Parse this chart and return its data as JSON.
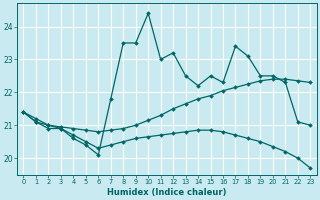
{
  "xlabel": "Humidex (Indice chaleur)",
  "bg_color": "#c8eaf0",
  "line_color": "#006666",
  "grid_color": "#ffffff",
  "xlim": [
    -0.5,
    23.5
  ],
  "ylim": [
    19.5,
    24.7
  ],
  "yticks": [
    20,
    21,
    22,
    23,
    24
  ],
  "xticks": [
    0,
    1,
    2,
    3,
    4,
    5,
    6,
    7,
    8,
    9,
    10,
    11,
    12,
    13,
    14,
    15,
    16,
    17,
    18,
    19,
    20,
    21,
    22,
    23
  ],
  "jagged_x": [
    0,
    1,
    2,
    3,
    4,
    5,
    6,
    7,
    8,
    9,
    10,
    11,
    12,
    13,
    14,
    15,
    16,
    17,
    18,
    19,
    20,
    21,
    22,
    23
  ],
  "jagged_y": [
    21.4,
    21.1,
    20.9,
    20.9,
    20.6,
    20.4,
    20.1,
    21.8,
    23.5,
    23.5,
    24.4,
    23.0,
    23.2,
    22.5,
    22.2,
    22.5,
    22.3,
    23.4,
    23.1,
    22.5,
    22.5,
    22.3,
    21.1,
    21.0
  ],
  "rise_x": [
    0,
    1,
    2,
    3,
    4,
    5,
    6,
    7,
    8,
    9,
    10,
    11,
    12,
    13,
    14,
    15,
    16,
    17,
    18,
    19,
    20,
    21,
    22,
    23
  ],
  "rise_y": [
    21.4,
    21.1,
    21.0,
    20.95,
    20.9,
    20.85,
    20.8,
    20.85,
    20.9,
    21.0,
    21.15,
    21.3,
    21.5,
    21.65,
    21.8,
    21.9,
    22.05,
    22.15,
    22.25,
    22.35,
    22.4,
    22.4,
    22.35,
    22.3
  ],
  "fall_x": [
    0,
    1,
    2,
    3,
    4,
    5,
    6,
    7,
    8,
    9,
    10,
    11,
    12,
    13,
    14,
    15,
    16,
    17,
    18,
    19,
    20,
    21,
    22,
    23
  ],
  "fall_y": [
    21.4,
    21.2,
    21.0,
    20.9,
    20.7,
    20.5,
    20.3,
    20.4,
    20.5,
    20.6,
    20.65,
    20.7,
    20.75,
    20.8,
    20.85,
    20.85,
    20.8,
    20.7,
    20.6,
    20.5,
    20.35,
    20.2,
    20.0,
    19.7
  ]
}
